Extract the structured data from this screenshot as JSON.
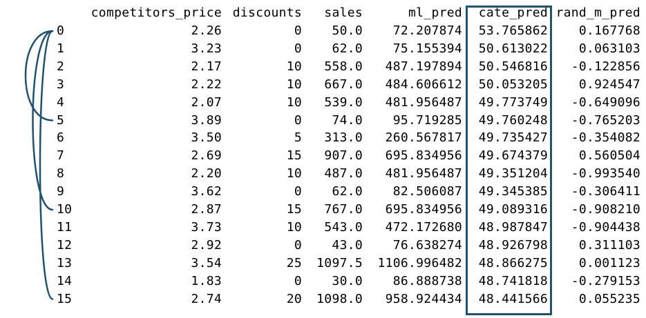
{
  "columns": [
    "competitors_price",
    "discounts",
    "sales",
    "ml_pred",
    "cate_pred",
    "rand_m_pred"
  ],
  "rows": [
    {
      "index": "0",
      "competitors_price": "2.26",
      "discounts": "0",
      "sales": "50.0",
      "ml_pred": "72.207874",
      "cate_pred": "53.765862",
      "rand_m_pred": "0.167768"
    },
    {
      "index": "1",
      "competitors_price": "3.23",
      "discounts": "0",
      "sales": "62.0",
      "ml_pred": "75.155394",
      "cate_pred": "50.613022",
      "rand_m_pred": "0.063103"
    },
    {
      "index": "2",
      "competitors_price": "2.17",
      "discounts": "10",
      "sales": "558.0",
      "ml_pred": "487.197894",
      "cate_pred": "50.546816",
      "rand_m_pred": "-0.122856"
    },
    {
      "index": "3",
      "competitors_price": "2.22",
      "discounts": "10",
      "sales": "667.0",
      "ml_pred": "484.606612",
      "cate_pred": "50.053205",
      "rand_m_pred": "0.924547"
    },
    {
      "index": "4",
      "competitors_price": "2.07",
      "discounts": "10",
      "sales": "539.0",
      "ml_pred": "481.956487",
      "cate_pred": "49.773749",
      "rand_m_pred": "-0.649096"
    },
    {
      "index": "5",
      "competitors_price": "3.89",
      "discounts": "0",
      "sales": "74.0",
      "ml_pred": "95.719285",
      "cate_pred": "49.760248",
      "rand_m_pred": "-0.765203"
    },
    {
      "index": "6",
      "competitors_price": "3.50",
      "discounts": "5",
      "sales": "313.0",
      "ml_pred": "260.567817",
      "cate_pred": "49.735427",
      "rand_m_pred": "-0.354082"
    },
    {
      "index": "7",
      "competitors_price": "2.69",
      "discounts": "15",
      "sales": "907.0",
      "ml_pred": "695.834956",
      "cate_pred": "49.674379",
      "rand_m_pred": "0.560504"
    },
    {
      "index": "8",
      "competitors_price": "2.20",
      "discounts": "10",
      "sales": "487.0",
      "ml_pred": "481.956487",
      "cate_pred": "49.351204",
      "rand_m_pred": "-0.993540"
    },
    {
      "index": "9",
      "competitors_price": "3.62",
      "discounts": "0",
      "sales": "62.0",
      "ml_pred": "82.506087",
      "cate_pred": "49.345385",
      "rand_m_pred": "-0.306411"
    },
    {
      "index": "10",
      "competitors_price": "2.87",
      "discounts": "15",
      "sales": "767.0",
      "ml_pred": "695.834956",
      "cate_pred": "49.089316",
      "rand_m_pred": "-0.908210"
    },
    {
      "index": "11",
      "competitors_price": "3.73",
      "discounts": "10",
      "sales": "543.0",
      "ml_pred": "472.172680",
      "cate_pred": "48.987847",
      "rand_m_pred": "-0.904438"
    },
    {
      "index": "12",
      "competitors_price": "2.92",
      "discounts": "0",
      "sales": "43.0",
      "ml_pred": "76.638274",
      "cate_pred": "48.926798",
      "rand_m_pred": "0.311103"
    },
    {
      "index": "13",
      "competitors_price": "3.54",
      "discounts": "25",
      "sales": "1097.5",
      "ml_pred": "1106.996482",
      "cate_pred": "48.866275",
      "rand_m_pred": "0.001123"
    },
    {
      "index": "14",
      "competitors_price": "1.83",
      "discounts": "0",
      "sales": "30.0",
      "ml_pred": "86.888738",
      "cate_pred": "48.741818",
      "rand_m_pred": "-0.279153"
    },
    {
      "index": "15",
      "competitors_price": "2.74",
      "discounts": "20",
      "sales": "1098.0",
      "ml_pred": "958.924434",
      "cate_pred": "48.441566",
      "rand_m_pred": "0.055235"
    }
  ],
  "highlight": {
    "column": "cate_pred",
    "color": "#1f5170"
  },
  "bracket_color": "#1f5170",
  "bracket_groups": [
    [
      "0",
      "5"
    ],
    [
      "0",
      "10"
    ],
    [
      "0",
      "15"
    ]
  ]
}
